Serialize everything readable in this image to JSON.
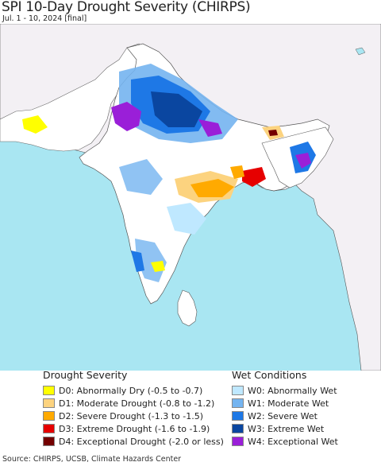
{
  "header": {
    "title": "SPI 10-Day Drought Severity (CHIRPS)",
    "subtitle": "Jul. 1 - 10, 2024 [final]"
  },
  "colors": {
    "ocean": "#a9e6f2",
    "land_background": "#f3f0f4",
    "land_neutral": "#ffffff",
    "D0": "#ffff00",
    "D1": "#fcd37f",
    "D2": "#ffaa00",
    "D3": "#e60000",
    "D4": "#730000",
    "W0": "#bfe8ff",
    "W1": "#74b4f0",
    "W2": "#1e78e6",
    "W3": "#0a46a0",
    "W4": "#9a1fd8"
  },
  "legend": {
    "drought_title": "Drought Severity",
    "wet_title": "Wet Conditions",
    "drought_items": [
      {
        "code": "D0",
        "label": "D0: Abnormally Dry (-0.5 to -0.7)",
        "color": "#ffff00"
      },
      {
        "code": "D1",
        "label": "D1: Moderate Drought (-0.8 to -1.2)",
        "color": "#fcd37f"
      },
      {
        "code": "D2",
        "label": "D2: Severe Drought (-1.3 to -1.5)",
        "color": "#ffaa00"
      },
      {
        "code": "D3",
        "label": "D3: Extreme Drought (-1.6 to -1.9)",
        "color": "#e60000"
      },
      {
        "code": "D4",
        "label": "D4: Exceptional Drought (-2.0 or less)",
        "color": "#730000"
      }
    ],
    "wet_items": [
      {
        "code": "W0",
        "label": "W0: Abnormally Wet",
        "color": "#bfe8ff"
      },
      {
        "code": "W1",
        "label": "W1: Moderate Wet",
        "color": "#74b4f0"
      },
      {
        "code": "W2",
        "label": "W2: Severe Wet",
        "color": "#1e78e6"
      },
      {
        "code": "W3",
        "label": "W3: Extreme Wet",
        "color": "#0a46a0"
      },
      {
        "code": "W4",
        "label": "W4: Exceptional Wet",
        "color": "#9a1fd8"
      }
    ]
  },
  "footer": {
    "source": "Source: CHIRPS, UCSB, Climate Hazards Center"
  }
}
